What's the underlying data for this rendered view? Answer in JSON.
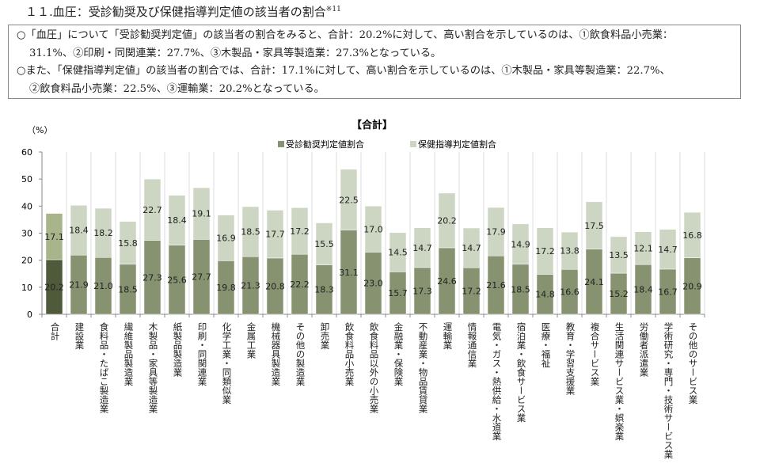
{
  "heading": {
    "number": "１１.",
    "text": "血圧：受診勧奨及び保健指導判定値の該当者の割合",
    "note": "※11"
  },
  "summary": [
    {
      "line1": "○「血圧」について「受診勧奨判定値」の該当者の割合をみると、合計：20.2%に対して、高い割合を示しているのは、①飲食料品小売業：",
      "line2": "31.1%、②印刷・同関連業：27.7%、③木製品・家具等製造業：27.3%となっている。"
    },
    {
      "line1": "○また、「保健指導判定値」の該当者の割合では、合計：17.1%に対して、高い割合を示しているのは、①木製品・家具等製造業：22.7%、",
      "line2": "②飲食料品小売業：22.5%、③運輸業：20.2%となっている。"
    }
  ],
  "chart_data": {
    "type": "bar",
    "stacked": true,
    "title": "【合計】",
    "ylabel": "（%）",
    "ylim": [
      0,
      60
    ],
    "yticks": [
      0,
      10,
      20,
      30,
      40,
      50,
      60
    ],
    "grid": "vertical",
    "legend": "top-center",
    "categories": [
      "合計",
      "建設業",
      "食料品・たばこ製造業",
      "繊維製品製造業",
      "木製品・家具等製造業",
      "紙製品製造業",
      "印刷・同関連業",
      "化学工業・同類似業",
      "金属工業",
      "機械器具製造業",
      "その他の製造業",
      "卸売業",
      "飲食料品小売業",
      "飲食料品以外の小売業",
      "金融業・保険業",
      "不動産業・物品賃貸業",
      "運輸業",
      "情報通信業",
      "電気・ガス・熱供給・水道業",
      "宿泊業・飲食サービス業",
      "医療・福祉",
      "教育・学習支援業",
      "複合サービス業",
      "生活関連サービス業・娯楽業",
      "労働者派遣業",
      "学術研究・専門・技術サービス業",
      "その他のサービス業"
    ],
    "series": [
      {
        "name": "受診勧奨判定値割合",
        "color": "#879271",
        "highlight": "#4f5a3a",
        "values": [
          20.2,
          21.9,
          21.0,
          18.5,
          27.3,
          25.6,
          27.7,
          19.8,
          21.3,
          20.8,
          22.2,
          18.3,
          31.1,
          23.0,
          15.7,
          17.3,
          24.6,
          17.2,
          21.6,
          18.5,
          14.8,
          16.6,
          24.1,
          15.2,
          18.4,
          16.7,
          20.9
        ]
      },
      {
        "name": "保健指導判定値割合",
        "color": "#cdd5c3",
        "highlight": "#a8b58c",
        "values": [
          17.1,
          18.4,
          18.2,
          15.8,
          22.7,
          18.4,
          19.1,
          16.9,
          18.5,
          17.7,
          17.2,
          15.5,
          22.5,
          17.0,
          14.5,
          14.7,
          20.2,
          14.7,
          17.9,
          14.9,
          17.2,
          13.8,
          17.5,
          13.5,
          12.1,
          14.7,
          16.8
        ]
      }
    ]
  }
}
